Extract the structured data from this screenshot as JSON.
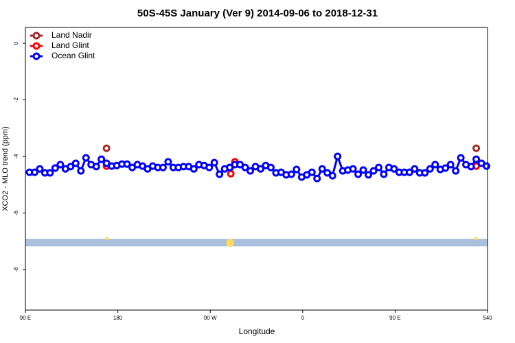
{
  "chart_data": {
    "type": "line",
    "title": "50S-45S January (Ver 9)   2014-09-06 to 2018-12-31",
    "x_label": "Longitude",
    "y_label": "XCO2 - MLO trend (ppm)",
    "xlim": [
      90,
      540
    ],
    "xticks": [
      {
        "value": 90,
        "label": "90 E"
      },
      180,
      {
        "value": 270,
        "label": "90 W"
      },
      {
        "value": 360,
        "label": "0"
      },
      {
        "value": 450,
        "label": "90 E"
      },
      540
    ],
    "ylim": [
      -9.43,
      0.56
    ],
    "yticks": [
      0,
      -2,
      -4,
      -6,
      -8
    ],
    "band": [
      -7.18,
      -6.91
    ],
    "band_color": "#a9bfdc",
    "legend": "top-left",
    "series": [
      {
        "name": "Land Nadir",
        "color": "#a52a2a",
        "x": [
          169,
          null,
          529
        ],
        "values": [
          -3.71,
          null,
          -3.71
        ]
      },
      {
        "name": "Land Glint",
        "color": "#ff0000",
        "x": [
          169,
          null,
          289,
          290,
          294,
          null,
          529
        ],
        "values": [
          -4.34,
          null,
          -4.39,
          -4.61,
          -4.19,
          null,
          -4.34
        ]
      },
      {
        "name": "Ocean Glint",
        "color": "#0000ff",
        "x": [
          94,
          99,
          104,
          109,
          114,
          119,
          124,
          129,
          134,
          139,
          144,
          149,
          154,
          159,
          164,
          169,
          174,
          179,
          184,
          189,
          194,
          199,
          204,
          209,
          214,
          219,
          224,
          229,
          234,
          239,
          244,
          249,
          254,
          259,
          264,
          269,
          274,
          279,
          284,
          289,
          294,
          299,
          304,
          309,
          314,
          319,
          324,
          329,
          334,
          339,
          344,
          349,
          354,
          359,
          364,
          369,
          374,
          379,
          384,
          389,
          394,
          399,
          404,
          409,
          414,
          419,
          424,
          429,
          434,
          439,
          444,
          449,
          454,
          459,
          464,
          469,
          474,
          479,
          484,
          489,
          494,
          499,
          504,
          509,
          514,
          519,
          524,
          529,
          534,
          539
        ],
        "values": [
          -4.56,
          -4.56,
          -4.44,
          -4.58,
          -4.58,
          -4.41,
          -4.29,
          -4.44,
          -4.36,
          -4.24,
          -4.51,
          -4.05,
          -4.29,
          -4.36,
          -4.1,
          -4.24,
          -4.34,
          -4.32,
          -4.27,
          -4.27,
          -4.39,
          -4.29,
          -4.34,
          -4.44,
          -4.34,
          -4.39,
          -4.39,
          -4.19,
          -4.39,
          -4.39,
          -4.36,
          -4.36,
          -4.44,
          -4.29,
          -4.32,
          -4.39,
          -4.22,
          -4.63,
          -4.44,
          -4.39,
          -4.29,
          -4.29,
          -4.39,
          -4.51,
          -4.36,
          -4.44,
          -4.32,
          -4.39,
          -4.58,
          -4.56,
          -4.65,
          -4.63,
          -4.46,
          -4.73,
          -4.65,
          -4.56,
          -4.78,
          -4.44,
          -4.58,
          -4.68,
          -4.0,
          -4.51,
          -4.48,
          -4.44,
          -4.63,
          -4.48,
          -4.65,
          -4.51,
          -4.39,
          -4.63,
          -4.39,
          -4.44,
          -4.56,
          -4.56,
          -4.56,
          -4.44,
          -4.58,
          -4.58,
          -4.44,
          -4.29,
          -4.46,
          -4.41,
          -4.29,
          -4.51,
          -4.05,
          -4.29,
          -4.36,
          -4.1,
          -4.24,
          -4.34
        ]
      }
    ]
  }
}
